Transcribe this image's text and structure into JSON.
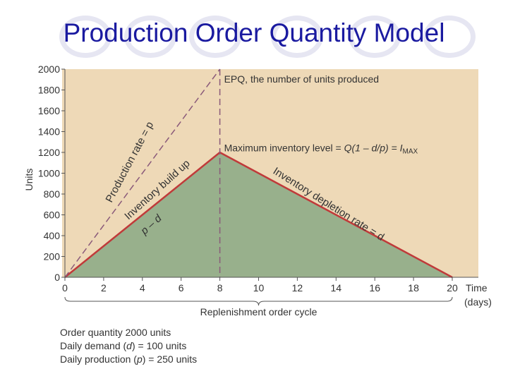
{
  "slide": {
    "title": "Production Order Quantity Model"
  },
  "chart_data": {
    "type": "area",
    "xlabel_line1": "Time",
    "xlabel_line2": "(days)",
    "ylabel": "Units",
    "xlim": [
      0,
      20
    ],
    "ylim": [
      0,
      2000
    ],
    "x_ticks": [
      0,
      2,
      4,
      6,
      8,
      10,
      12,
      14,
      16,
      18,
      20
    ],
    "y_ticks": [
      0,
      200,
      400,
      600,
      800,
      1000,
      1200,
      1400,
      1600,
      1800,
      2000
    ],
    "grid": false,
    "series": [
      {
        "points": [
          [
            0,
            0
          ],
          [
            8,
            1200
          ],
          [
            20,
            0
          ]
        ],
        "style": "solid-filled"
      },
      {
        "points": [
          [
            0,
            0
          ],
          [
            8,
            2000
          ]
        ],
        "style": "dashed"
      }
    ],
    "vline": {
      "x": 8,
      "style": "dashed"
    },
    "annotations": {
      "epq": "EPQ, the number of units produced",
      "max_inventory_prefix": "Maximum inventory level = ",
      "max_inventory_formula": "Q(1 – d/p) = I",
      "max_inventory_sub": "MAX",
      "production_rate": "Production rate = p",
      "buildup": "Inventory build up",
      "buildup_rate": "p – d",
      "depletion": "Inventory depletion rate = d",
      "cycle": "Replenishment order cycle"
    },
    "colors": {
      "background": "#eed9b7",
      "fill": "#98b08c",
      "line": "#c03a3a",
      "dashed": "#8a5a7a"
    }
  },
  "footnotes": {
    "order_quantity": "Order quantity 2000 units",
    "daily_demand_prefix": "Daily demand (",
    "daily_demand_symbol": "d",
    "daily_demand_suffix": ") = 100 units",
    "daily_production_prefix": "Daily production (",
    "daily_production_symbol": "p",
    "daily_production_suffix": ") = 250 units"
  }
}
